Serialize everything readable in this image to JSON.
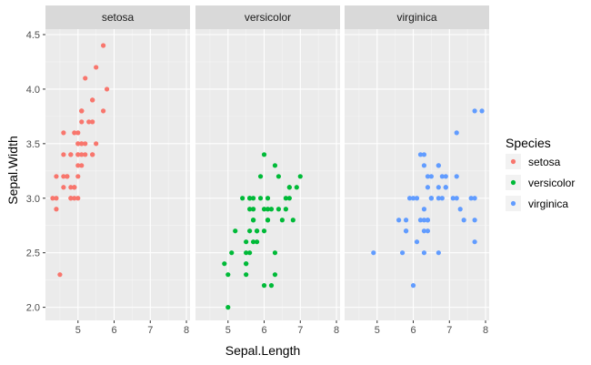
{
  "chart_data": {
    "type": "scatter",
    "facet_by": "Species",
    "xlabel": "Sepal.Length",
    "ylabel": "Sepal.Width",
    "xlim": [
      4.1,
      8.1
    ],
    "ylim": [
      1.88,
      4.55
    ],
    "x_ticks": [
      5,
      6,
      7,
      8
    ],
    "y_ticks": [
      "2.0",
      "2.5",
      "3.0",
      "3.5",
      "4.0",
      "4.5"
    ],
    "grid": true,
    "legend": {
      "title": "Species",
      "placement": "right",
      "entries": [
        "setosa",
        "versicolor",
        "virginica"
      ]
    },
    "panels": [
      {
        "label": "setosa",
        "color": "#F8766D",
        "points": [
          [
            5.1,
            3.5
          ],
          [
            4.9,
            3.0
          ],
          [
            4.7,
            3.2
          ],
          [
            4.6,
            3.1
          ],
          [
            5.0,
            3.6
          ],
          [
            5.4,
            3.9
          ],
          [
            4.6,
            3.4
          ],
          [
            5.0,
            3.4
          ],
          [
            4.4,
            2.9
          ],
          [
            4.9,
            3.1
          ],
          [
            5.4,
            3.7
          ],
          [
            4.8,
            3.4
          ],
          [
            4.8,
            3.0
          ],
          [
            4.3,
            3.0
          ],
          [
            5.8,
            4.0
          ],
          [
            5.7,
            4.4
          ],
          [
            5.4,
            3.9
          ],
          [
            5.1,
            3.5
          ],
          [
            5.7,
            3.8
          ],
          [
            5.1,
            3.8
          ],
          [
            5.4,
            3.4
          ],
          [
            5.1,
            3.7
          ],
          [
            4.6,
            3.6
          ],
          [
            5.1,
            3.3
          ],
          [
            4.8,
            3.4
          ],
          [
            5.0,
            3.0
          ],
          [
            5.0,
            3.4
          ],
          [
            5.2,
            3.5
          ],
          [
            5.2,
            3.4
          ],
          [
            4.7,
            3.2
          ],
          [
            4.8,
            3.1
          ],
          [
            5.4,
            3.4
          ],
          [
            5.2,
            4.1
          ],
          [
            5.5,
            4.2
          ],
          [
            4.9,
            3.1
          ],
          [
            5.0,
            3.2
          ],
          [
            5.5,
            3.5
          ],
          [
            4.9,
            3.6
          ],
          [
            4.4,
            3.0
          ],
          [
            5.1,
            3.4
          ],
          [
            5.0,
            3.5
          ],
          [
            4.5,
            2.3
          ],
          [
            4.4,
            3.2
          ],
          [
            5.0,
            3.5
          ],
          [
            5.1,
            3.8
          ],
          [
            4.8,
            3.0
          ],
          [
            5.1,
            3.8
          ],
          [
            4.6,
            3.2
          ],
          [
            5.3,
            3.7
          ],
          [
            5.0,
            3.3
          ]
        ]
      },
      {
        "label": "versicolor",
        "color": "#00BA38",
        "points": [
          [
            7.0,
            3.2
          ],
          [
            6.4,
            3.2
          ],
          [
            6.9,
            3.1
          ],
          [
            5.5,
            2.3
          ],
          [
            6.5,
            2.8
          ],
          [
            5.7,
            2.8
          ],
          [
            6.3,
            3.3
          ],
          [
            4.9,
            2.4
          ],
          [
            6.6,
            2.9
          ],
          [
            5.2,
            2.7
          ],
          [
            5.0,
            2.0
          ],
          [
            5.9,
            3.0
          ],
          [
            6.0,
            2.2
          ],
          [
            6.1,
            2.9
          ],
          [
            5.6,
            2.9
          ],
          [
            6.7,
            3.1
          ],
          [
            5.6,
            3.0
          ],
          [
            5.8,
            2.7
          ],
          [
            6.2,
            2.2
          ],
          [
            5.6,
            2.5
          ],
          [
            5.9,
            3.2
          ],
          [
            6.1,
            2.8
          ],
          [
            6.3,
            2.5
          ],
          [
            6.1,
            2.8
          ],
          [
            6.4,
            2.9
          ],
          [
            6.6,
            3.0
          ],
          [
            6.8,
            2.8
          ],
          [
            6.7,
            3.0
          ],
          [
            6.0,
            2.9
          ],
          [
            5.7,
            2.6
          ],
          [
            5.5,
            2.4
          ],
          [
            5.5,
            2.4
          ],
          [
            5.8,
            2.7
          ],
          [
            6.0,
            2.7
          ],
          [
            5.4,
            3.0
          ],
          [
            6.0,
            3.4
          ],
          [
            6.7,
            3.1
          ],
          [
            6.3,
            2.3
          ],
          [
            5.6,
            3.0
          ],
          [
            5.5,
            2.5
          ],
          [
            5.5,
            2.6
          ],
          [
            6.1,
            3.0
          ],
          [
            5.8,
            2.6
          ],
          [
            5.0,
            2.3
          ],
          [
            5.6,
            2.7
          ],
          [
            5.7,
            3.0
          ],
          [
            5.7,
            2.9
          ],
          [
            6.2,
            2.9
          ],
          [
            5.1,
            2.5
          ],
          [
            5.7,
            2.8
          ]
        ]
      },
      {
        "label": "virginica",
        "color": "#619CFF",
        "points": [
          [
            6.3,
            3.3
          ],
          [
            5.8,
            2.7
          ],
          [
            7.1,
            3.0
          ],
          [
            6.3,
            2.9
          ],
          [
            6.5,
            3.0
          ],
          [
            7.6,
            3.0
          ],
          [
            4.9,
            2.5
          ],
          [
            7.3,
            2.9
          ],
          [
            6.7,
            2.5
          ],
          [
            7.2,
            3.6
          ],
          [
            6.5,
            3.2
          ],
          [
            6.4,
            2.7
          ],
          [
            6.8,
            3.0
          ],
          [
            5.7,
            2.5
          ],
          [
            5.8,
            2.8
          ],
          [
            6.4,
            3.2
          ],
          [
            6.5,
            3.0
          ],
          [
            7.7,
            3.8
          ],
          [
            7.7,
            2.6
          ],
          [
            6.0,
            2.2
          ],
          [
            6.9,
            3.2
          ],
          [
            5.6,
            2.8
          ],
          [
            7.7,
            2.8
          ],
          [
            6.3,
            2.7
          ],
          [
            6.7,
            3.3
          ],
          [
            7.2,
            3.2
          ],
          [
            6.2,
            2.8
          ],
          [
            6.1,
            3.0
          ],
          [
            6.4,
            2.8
          ],
          [
            7.2,
            3.0
          ],
          [
            7.4,
            2.8
          ],
          [
            7.9,
            3.8
          ],
          [
            6.4,
            2.8
          ],
          [
            6.3,
            2.8
          ],
          [
            6.1,
            2.6
          ],
          [
            7.7,
            3.0
          ],
          [
            6.3,
            3.4
          ],
          [
            6.4,
            3.1
          ],
          [
            6.0,
            3.0
          ],
          [
            6.9,
            3.1
          ],
          [
            6.7,
            3.1
          ],
          [
            6.9,
            3.1
          ],
          [
            5.8,
            2.7
          ],
          [
            6.8,
            3.2
          ],
          [
            6.7,
            3.3
          ],
          [
            6.7,
            3.0
          ],
          [
            6.3,
            2.5
          ],
          [
            6.5,
            3.0
          ],
          [
            6.2,
            3.4
          ],
          [
            5.9,
            3.0
          ]
        ]
      }
    ]
  }
}
